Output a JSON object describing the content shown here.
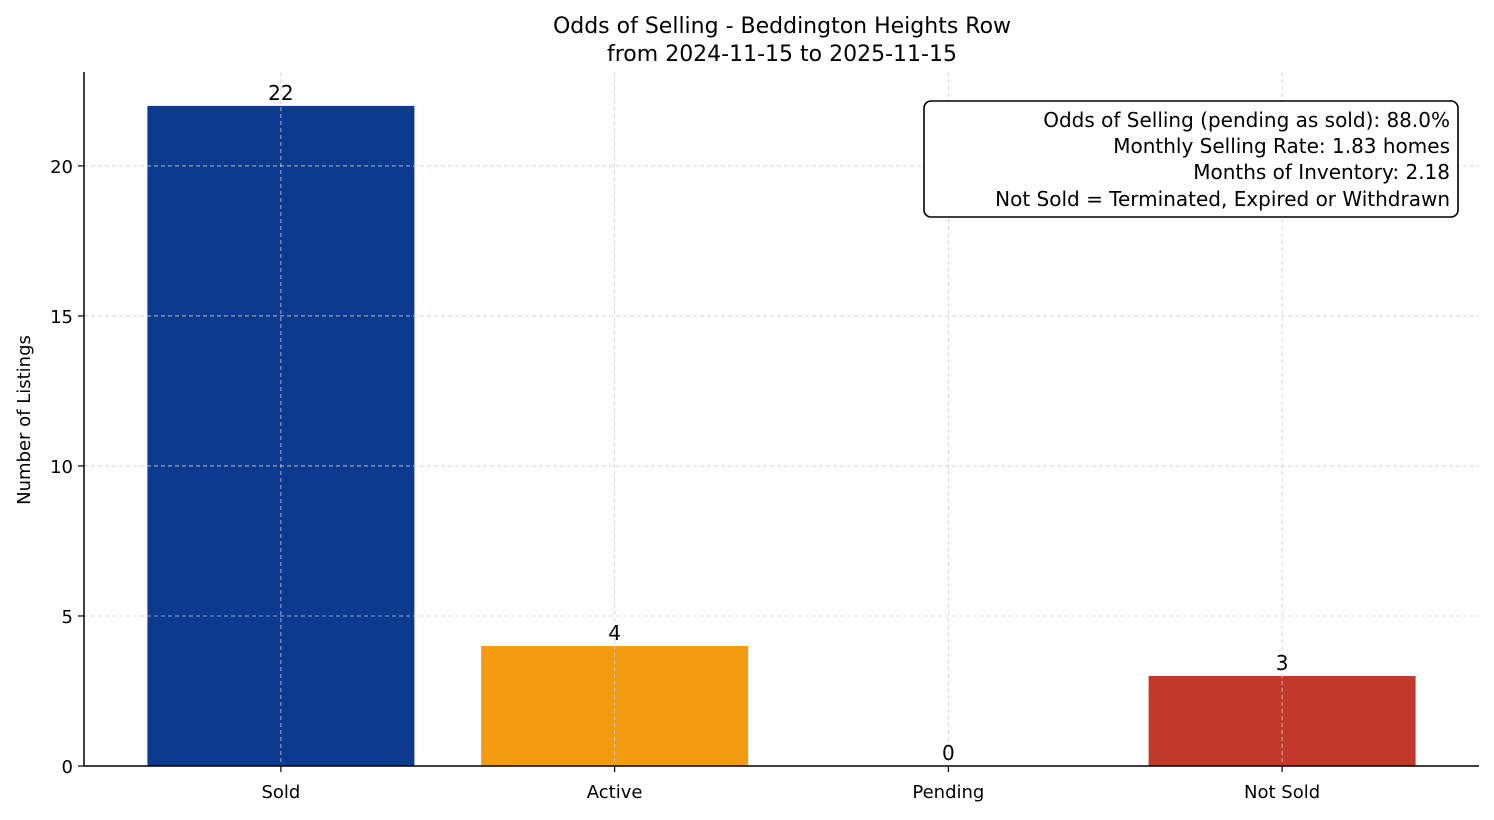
{
  "chart_data": {
    "type": "bar",
    "title": "Odds of Selling - Beddington Heights Row",
    "subtitle": "from 2024-11-15 to 2025-11-15",
    "xlabel": "",
    "ylabel": "Number of Listings",
    "categories": [
      "Sold",
      "Active",
      "Pending",
      "Not Sold"
    ],
    "values": [
      22,
      4,
      0,
      3
    ],
    "data_labels": [
      "22",
      "4",
      "0",
      "3"
    ],
    "colors": [
      "#0b3a8f",
      "#f39c12",
      "#27ae60",
      "#c0392b"
    ],
    "ylim": [
      0,
      23.13
    ],
    "yticks": [
      0,
      5,
      10,
      15,
      20
    ],
    "grid": true,
    "annotation": {
      "placement": "top-right",
      "lines": [
        "Odds of Selling (pending as sold): 88.0%",
        "Monthly Selling Rate: 1.83 homes",
        "Months of Inventory: 2.18",
        "Not Sold = Terminated, Expired or Withdrawn"
      ]
    }
  }
}
